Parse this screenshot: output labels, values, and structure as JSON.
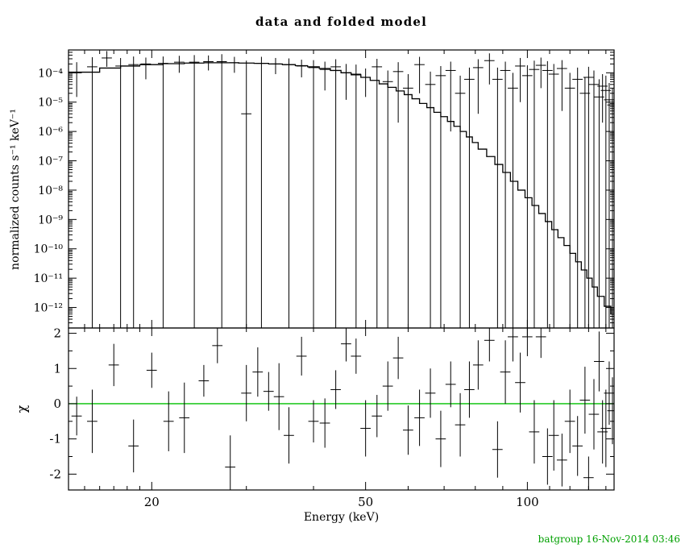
{
  "footer": "batgroup 16-Nov-2014 03:46",
  "colors": {
    "foreground": "#000000",
    "model": "#000000",
    "zero_line": "#00c000",
    "footer_text": "#00a000",
    "background": "#ffffff"
  },
  "chart_data": {
    "type": "line",
    "title": "data and folded model",
    "xlabel": "Energy (keV)",
    "ylabel_top": "normalized counts s⁻¹ keV⁻¹",
    "ylabel_bottom": "χ",
    "x_scale": "log",
    "x_range": [
      14,
      145
    ],
    "x_ticks": [
      {
        "v": 20,
        "label": "20"
      },
      {
        "v": 50,
        "label": "50"
      },
      {
        "v": 100,
        "label": "100"
      }
    ],
    "x_minor_ticks": [
      15,
      16,
      17,
      18,
      19,
      30,
      40,
      60,
      70,
      80,
      90,
      110,
      120,
      130,
      140
    ],
    "top": {
      "y_scale": "log",
      "y_range": [
        2e-13,
        0.0006
      ],
      "y_ticks": [
        {
          "v": 0.0001,
          "label": "10⁻⁴"
        },
        {
          "v": 1e-05,
          "label": "10⁻⁵"
        },
        {
          "v": 1e-06,
          "label": "10⁻⁶"
        },
        {
          "v": 1e-07,
          "label": "10⁻⁷"
        },
        {
          "v": 1e-08,
          "label": "10⁻⁸"
        },
        {
          "v": 1e-09,
          "label": "10⁻⁹"
        },
        {
          "v": 1e-10,
          "label": "10⁻¹⁰"
        },
        {
          "v": 1e-11,
          "label": "10⁻¹¹"
        },
        {
          "v": 1e-12,
          "label": "10⁻¹²"
        }
      ],
      "bin_halfwidth_frac": 0.022,
      "model": {
        "edges": [
          14,
          16,
          17.5,
          19,
          21,
          23,
          25,
          27,
          29,
          31,
          33,
          35,
          37,
          39,
          41,
          43,
          45,
          47,
          49,
          51,
          53,
          55,
          57,
          59,
          61,
          63,
          65,
          67,
          69,
          71,
          73,
          75,
          77,
          79,
          81,
          84,
          87,
          90,
          93,
          96,
          99,
          102,
          105,
          108,
          111,
          114,
          117,
          120,
          123,
          126,
          129,
          132,
          135,
          139,
          143,
          145
        ],
        "values": [
          0.000105,
          0.000145,
          0.00017,
          0.00019,
          0.000205,
          0.000215,
          0.00022,
          0.00022,
          0.000215,
          0.00021,
          0.0002,
          0.00019,
          0.000175,
          0.00016,
          0.00014,
          0.00012,
          0.0001,
          8.5e-05,
          7e-05,
          5.5e-05,
          4.2e-05,
          3.2e-05,
          2.4e-05,
          1.8e-05,
          1.3e-05,
          9e-06,
          6.5e-06,
          4.5e-06,
          3.2e-06,
          2.2e-06,
          1.5e-06,
          1e-06,
          6.5e-07,
          4.2e-07,
          2.5e-07,
          1.4e-07,
          7.5e-08,
          4e-08,
          2e-08,
          1e-08,
          5.5e-09,
          3e-09,
          1.6e-09,
          8.5e-10,
          4.5e-10,
          2.4e-10,
          1.3e-10,
          7e-11,
          3.6e-11,
          1.9e-11,
          1e-11,
          5e-12,
          2.4e-12,
          1.1e-12,
          6e-13
        ]
      },
      "points_format": [
        "energy_keV",
        "value",
        "err_low",
        "err_high"
      ],
      "points": [
        [
          14.5,
          0.0001,
          1.5e-05,
          0.00023
        ],
        [
          15.5,
          0.00016,
          1e-13,
          0.00034
        ],
        [
          16.5,
          0.00032,
          0.00016,
          0.00055
        ],
        [
          17.5,
          0.00017,
          1e-13,
          0.00032
        ],
        [
          18.5,
          0.00019,
          1e-13,
          0.00036
        ],
        [
          19.5,
          0.0002,
          6e-05,
          0.00033
        ],
        [
          21,
          0.00021,
          1e-13,
          0.00036
        ],
        [
          22.5,
          0.00023,
          0.0001,
          0.00038
        ],
        [
          24,
          0.00023,
          1e-13,
          0.0004
        ],
        [
          25.5,
          0.00024,
          0.00012,
          0.00039
        ],
        [
          27,
          0.00024,
          1e-13,
          0.00043
        ],
        [
          28.5,
          0.00022,
          0.0001,
          0.00035
        ],
        [
          30,
          4e-06,
          1e-13,
          0.00026
        ],
        [
          32,
          0.00021,
          1e-13,
          0.00035
        ],
        [
          34,
          0.0002,
          9e-05,
          0.00032
        ],
        [
          36,
          0.00019,
          1e-13,
          0.00031
        ],
        [
          38,
          0.00017,
          7e-05,
          0.00028
        ],
        [
          40,
          0.00015,
          1e-13,
          0.00027
        ],
        [
          42,
          0.00013,
          2.5e-05,
          0.00024
        ],
        [
          44,
          0.00016,
          1e-13,
          0.00029
        ],
        [
          46,
          0.0001,
          1.2e-05,
          0.0002
        ],
        [
          48,
          9e-05,
          1e-13,
          0.00019
        ],
        [
          50,
          7e-05,
          1.5e-05,
          0.00014
        ],
        [
          52.5,
          0.00016,
          1e-13,
          0.0003
        ],
        [
          55,
          5e-05,
          1e-13,
          0.00012
        ],
        [
          57.5,
          0.00011,
          2e-06,
          0.00023
        ],
        [
          60,
          3e-05,
          1e-13,
          9e-05
        ],
        [
          63,
          0.00019,
          2e-05,
          0.00035
        ],
        [
          66,
          4e-05,
          1e-13,
          0.00011
        ],
        [
          69,
          8e-05,
          1e-13,
          0.00017
        ],
        [
          72,
          0.00012,
          1e-06,
          0.00024
        ],
        [
          75,
          2e-05,
          1e-13,
          8e-05
        ],
        [
          78,
          6e-05,
          1e-13,
          0.00015
        ],
        [
          81,
          0.00015,
          4e-06,
          0.00029
        ],
        [
          85,
          0.00026,
          4e-05,
          0.00046
        ],
        [
          88,
          6e-05,
          1e-13,
          0.00015
        ],
        [
          91,
          0.00012,
          1e-13,
          0.00024
        ],
        [
          94,
          3e-05,
          1e-13,
          0.0001
        ],
        [
          97,
          0.00017,
          1e-05,
          0.00032
        ],
        [
          100,
          8e-05,
          1e-13,
          0.00018
        ],
        [
          103,
          0.00013,
          1e-13,
          0.00026
        ],
        [
          106,
          0.00018,
          3e-05,
          0.00033
        ],
        [
          109,
          0.00012,
          1e-13,
          0.00025
        ],
        [
          112,
          9e-05,
          1e-13,
          0.0002
        ],
        [
          116,
          0.00014,
          5e-06,
          0.00027
        ],
        [
          120,
          3e-05,
          1e-13,
          0.0001
        ],
        [
          124,
          6e-05,
          1e-13,
          0.00015
        ],
        [
          128,
          2e-05,
          1e-13,
          7e-05
        ],
        [
          130,
          7e-05,
          1e-13,
          0.00016
        ],
        [
          133,
          4e-05,
          1e-13,
          0.00012
        ],
        [
          136,
          1.5e-05,
          1e-13,
          6e-05
        ],
        [
          138,
          3.5e-05,
          2e-06,
          9e-05
        ],
        [
          140,
          2.5e-05,
          1e-13,
          8e-05
        ],
        [
          142,
          1.2e-05,
          1e-13,
          4.5e-05
        ],
        [
          144,
          8e-06,
          1e-13,
          3e-05
        ]
      ]
    },
    "bottom": {
      "y_scale": "linear",
      "y_range": [
        -2.45,
        2.15
      ],
      "y_ticks": [
        {
          "v": 2,
          "label": "2"
        },
        {
          "v": 1,
          "label": "1"
        },
        {
          "v": 0,
          "label": "0"
        },
        {
          "v": -1,
          "label": "-1"
        },
        {
          "v": -2,
          "label": "-2"
        }
      ],
      "y_minor_ticks": [
        -1.5,
        -0.5,
        0.5,
        1.5
      ],
      "zero_line": 0,
      "points_format": [
        "energy_keV",
        "chi",
        "err"
      ],
      "points": [
        [
          14.5,
          -0.35,
          0.55
        ],
        [
          15.5,
          -0.5,
          0.9
        ],
        [
          17,
          1.1,
          0.6
        ],
        [
          18.5,
          -1.2,
          0.75
        ],
        [
          20,
          0.95,
          0.5
        ],
        [
          21.5,
          -0.5,
          0.85
        ],
        [
          23,
          -0.4,
          1.0
        ],
        [
          25,
          0.65,
          0.45
        ],
        [
          26.5,
          1.65,
          0.5
        ],
        [
          28,
          -1.8,
          0.9
        ],
        [
          30,
          0.3,
          0.8
        ],
        [
          31.5,
          0.9,
          0.7
        ],
        [
          33,
          0.35,
          0.55
        ],
        [
          34.5,
          0.2,
          0.95
        ],
        [
          36,
          -0.9,
          0.8
        ],
        [
          38,
          1.35,
          0.55
        ],
        [
          40,
          -0.5,
          0.6
        ],
        [
          42,
          -0.55,
          0.7
        ],
        [
          44,
          0.4,
          0.55
        ],
        [
          46,
          1.7,
          0.5
        ],
        [
          48,
          1.35,
          0.5
        ],
        [
          50,
          -0.7,
          0.8
        ],
        [
          52.5,
          -0.35,
          0.6
        ],
        [
          55,
          0.5,
          0.7
        ],
        [
          57.5,
          1.3,
          0.6
        ],
        [
          60,
          -0.75,
          0.7
        ],
        [
          63,
          -0.4,
          0.8
        ],
        [
          66,
          0.3,
          0.7
        ],
        [
          69,
          -1.0,
          0.8
        ],
        [
          72,
          0.55,
          0.65
        ],
        [
          75,
          -0.6,
          0.9
        ],
        [
          78,
          0.4,
          0.8
        ],
        [
          81,
          1.1,
          0.7
        ],
        [
          85,
          1.8,
          0.6
        ],
        [
          88,
          -1.3,
          0.8
        ],
        [
          91,
          0.9,
          0.9
        ],
        [
          94,
          1.9,
          0.7
        ],
        [
          97,
          0.6,
          0.85
        ],
        [
          100,
          1.9,
          0.55
        ],
        [
          103,
          -0.8,
          0.9
        ],
        [
          106,
          1.9,
          0.6
        ],
        [
          109,
          -1.5,
          0.8
        ],
        [
          112,
          -0.9,
          1.0
        ],
        [
          116,
          -1.6,
          0.75
        ],
        [
          120,
          -0.5,
          0.9
        ],
        [
          124,
          -1.2,
          0.85
        ],
        [
          128,
          0.1,
          0.95
        ],
        [
          130,
          -2.1,
          0.6
        ],
        [
          133,
          -0.3,
          1.0
        ],
        [
          136,
          1.2,
          0.85
        ],
        [
          138,
          -0.8,
          0.9
        ],
        [
          140,
          -0.7,
          1.1
        ],
        [
          142,
          0.3,
          0.9
        ],
        [
          144,
          -0.2,
          0.95
        ]
      ]
    }
  }
}
